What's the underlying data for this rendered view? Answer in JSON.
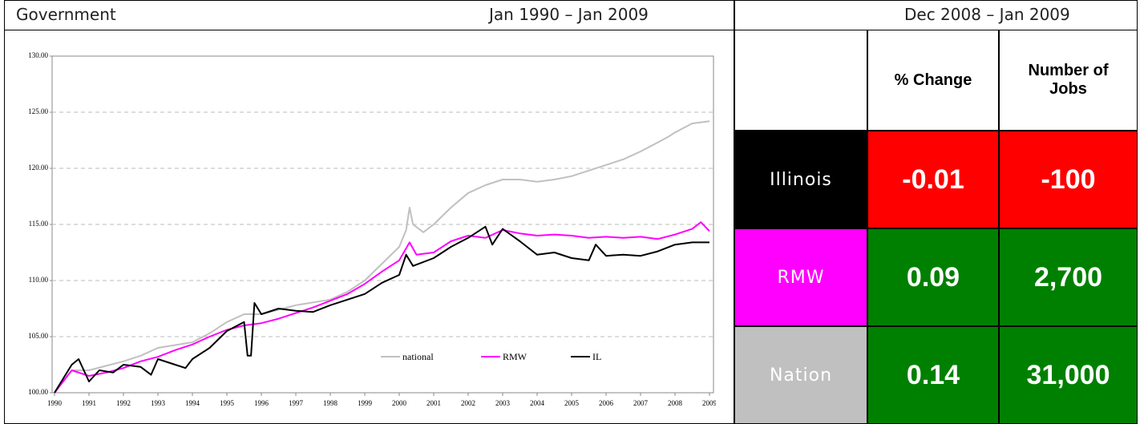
{
  "header": {
    "title": "Government",
    "chart_period": "Jan 1990 – Jan 2009",
    "table_period": "Dec 2008 – Jan 2009"
  },
  "chart_data": {
    "type": "line",
    "xlim": [
      1990,
      2009
    ],
    "xticks": [
      1990,
      1991,
      1992,
      1993,
      1994,
      1995,
      1996,
      1997,
      1998,
      1999,
      2000,
      2001,
      2002,
      2003,
      2004,
      2005,
      2006,
      2007,
      2008,
      2009
    ],
    "ylim": [
      100,
      130
    ],
    "yticks": [
      {
        "value": 100,
        "label": "100.00"
      },
      {
        "value": 105,
        "label": "105.00"
      },
      {
        "value": 110,
        "label": "110.00"
      },
      {
        "value": 115,
        "label": "115.00"
      },
      {
        "value": 120,
        "label": "120.00"
      },
      {
        "value": 125,
        "label": "125.00"
      },
      {
        "value": 130,
        "label": "130.00"
      }
    ],
    "grid": true,
    "series": [
      {
        "name": "national",
        "color": "#c0c0c0",
        "x": [
          1990,
          1990.5,
          1991,
          1992,
          1992.5,
          1993,
          1994,
          1994.5,
          1995,
          1995.5,
          1996,
          1997,
          1998,
          1998.5,
          1999,
          1999.5,
          2000,
          2000.2,
          2000.3,
          2000.4,
          2000.7,
          2001,
          2001.5,
          2002,
          2002.5,
          2003,
          2003.5,
          2004,
          2004.5,
          2005,
          2005.5,
          2006,
          2006.5,
          2007,
          2007.5,
          2007.8,
          2008,
          2008.5,
          2009
        ],
        "values": [
          100,
          102,
          102,
          102.8,
          103.3,
          104,
          104.5,
          105.3,
          106.3,
          107,
          107,
          107.8,
          108.3,
          109,
          110,
          111.5,
          113,
          114.5,
          116.5,
          115,
          114.3,
          115,
          116.5,
          117.8,
          118.5,
          119,
          119,
          118.8,
          119,
          119.3,
          119.8,
          120.3,
          120.8,
          121.5,
          122.3,
          122.8,
          123.2,
          124,
          124.2
        ]
      },
      {
        "name": "RMW",
        "color": "#ff00ff",
        "x": [
          1990,
          1990.5,
          1991,
          1991.5,
          1992,
          1992.5,
          1993,
          1993.5,
          1994,
          1994.5,
          1995,
          1995.5,
          1996,
          1996.5,
          1997,
          1997.5,
          1998,
          1998.5,
          1999,
          1999.5,
          2000,
          2000.3,
          2000.5,
          2001,
          2001.5,
          2002,
          2002.5,
          2003,
          2003.5,
          2004,
          2004.5,
          2005,
          2005.5,
          2006,
          2006.5,
          2007,
          2007.5,
          2008,
          2008.5,
          2008.75,
          2009
        ],
        "values": [
          100,
          102,
          101.5,
          101.8,
          102.2,
          102.8,
          103.2,
          103.8,
          104.3,
          105,
          105.6,
          106,
          106.2,
          106.6,
          107.1,
          107.6,
          108.2,
          108.8,
          109.7,
          110.8,
          111.8,
          113.4,
          112.3,
          112.5,
          113.5,
          114,
          113.8,
          114.5,
          114.2,
          114,
          114.1,
          114,
          113.8,
          113.9,
          113.8,
          113.9,
          113.7,
          114.1,
          114.6,
          115.2,
          114.4
        ]
      },
      {
        "name": "IL",
        "color": "#000000",
        "x": [
          1990,
          1990.5,
          1990.7,
          1991,
          1991.3,
          1991.7,
          1992,
          1992.5,
          1992.8,
          1993,
          1993.5,
          1993.8,
          1994,
          1994.5,
          1995,
          1995.5,
          1995.6,
          1995.7,
          1995.8,
          1996,
          1996.5,
          1997,
          1997.5,
          1998,
          1998.5,
          1999,
          1999.5,
          2000,
          2000.2,
          2000.4,
          2001,
          2001.5,
          2002,
          2002.5,
          2002.7,
          2003,
          2003.5,
          2004,
          2004.5,
          2005,
          2005.5,
          2005.7,
          2006,
          2006.5,
          2007,
          2007.5,
          2008,
          2008.5,
          2009
        ],
        "values": [
          100,
          102.5,
          103,
          101,
          102,
          101.8,
          102.5,
          102.3,
          101.6,
          103,
          102.5,
          102.2,
          103,
          104,
          105.5,
          106.3,
          103.3,
          103.3,
          108,
          107,
          107.5,
          107.3,
          107.2,
          107.8,
          108.3,
          108.8,
          109.8,
          110.5,
          112.3,
          111.3,
          112,
          113,
          113.8,
          114.8,
          113.2,
          114.6,
          113.5,
          112.3,
          112.5,
          112,
          111.8,
          113.2,
          112.2,
          112.3,
          112.2,
          112.6,
          113.2,
          113.4,
          113.4
        ]
      }
    ]
  },
  "table": {
    "columns": [
      "% Change",
      "Number of Jobs"
    ],
    "rows": [
      {
        "label": "Illinois",
        "color": "#000000",
        "value_color": "#ff0000",
        "cells": [
          "-0.01",
          "-100"
        ]
      },
      {
        "label": "RMW",
        "color": "#ff00ff",
        "value_color": "#008000",
        "cells": [
          "0.09",
          "2,700"
        ]
      },
      {
        "label": "Nation",
        "color": "#c0c0c0",
        "value_color": "#008000",
        "cells": [
          "0.14",
          "31,000"
        ]
      }
    ]
  }
}
